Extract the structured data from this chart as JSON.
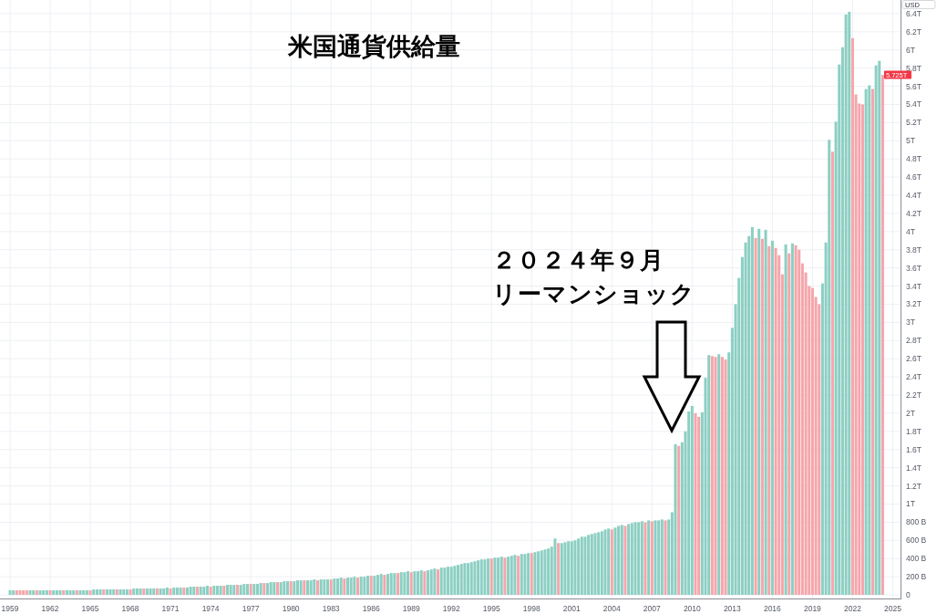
{
  "chart_data": {
    "type": "bar",
    "title": "米国通貨供給量",
    "ylabel": "USD",
    "annotations": [
      "２０２４年９月",
      "リーマンショック",
      {
        "text": "5.725T",
        "x": "2024-04",
        "y": 5725000000000.0
      }
    ],
    "x": [
      "1959-01",
      "1959-04",
      "1959-07",
      "1959-10",
      "1960-01",
      "1960-04",
      "1960-07",
      "1960-10",
      "1961-01",
      "1961-04",
      "1961-07",
      "1961-10",
      "1962-01",
      "1962-04",
      "1962-07",
      "1962-10",
      "1963-01",
      "1963-04",
      "1963-07",
      "1963-10",
      "1964-01",
      "1964-04",
      "1964-07",
      "1964-10",
      "1965-01",
      "1965-04",
      "1965-07",
      "1965-10",
      "1966-01",
      "1966-04",
      "1966-07",
      "1966-10",
      "1967-01",
      "1967-04",
      "1967-07",
      "1967-10",
      "1968-01",
      "1968-04",
      "1968-07",
      "1968-10",
      "1969-01",
      "1969-04",
      "1969-07",
      "1969-10",
      "1970-01",
      "1970-04",
      "1970-07",
      "1970-10",
      "1971-01",
      "1971-04",
      "1971-07",
      "1971-10",
      "1972-01",
      "1972-04",
      "1972-07",
      "1972-10",
      "1973-01",
      "1973-04",
      "1973-07",
      "1973-10",
      "1974-01",
      "1974-04",
      "1974-07",
      "1974-10",
      "1975-01",
      "1975-04",
      "1975-07",
      "1975-10",
      "1976-01",
      "1976-04",
      "1976-07",
      "1976-10",
      "1977-01",
      "1977-04",
      "1977-07",
      "1977-10",
      "1978-01",
      "1978-04",
      "1978-07",
      "1978-10",
      "1979-01",
      "1979-04",
      "1979-07",
      "1979-10",
      "1980-01",
      "1980-04",
      "1980-07",
      "1980-10",
      "1981-01",
      "1981-04",
      "1981-07",
      "1981-10",
      "1982-01",
      "1982-04",
      "1982-07",
      "1982-10",
      "1983-01",
      "1983-04",
      "1983-07",
      "1983-10",
      "1984-01",
      "1984-04",
      "1984-07",
      "1984-10",
      "1985-01",
      "1985-04",
      "1985-07",
      "1985-10",
      "1986-01",
      "1986-04",
      "1986-07",
      "1986-10",
      "1987-01",
      "1987-04",
      "1987-07",
      "1987-10",
      "1988-01",
      "1988-04",
      "1988-07",
      "1988-10",
      "1989-01",
      "1989-04",
      "1989-07",
      "1989-10",
      "1990-01",
      "1990-04",
      "1990-07",
      "1990-10",
      "1991-01",
      "1991-04",
      "1991-07",
      "1991-10",
      "1992-01",
      "1992-04",
      "1992-07",
      "1992-10",
      "1993-01",
      "1993-04",
      "1993-07",
      "1993-10",
      "1994-01",
      "1994-04",
      "1994-07",
      "1994-10",
      "1995-01",
      "1995-04",
      "1995-07",
      "1995-10",
      "1996-01",
      "1996-04",
      "1996-07",
      "1996-10",
      "1997-01",
      "1997-04",
      "1997-07",
      "1997-10",
      "1998-01",
      "1998-04",
      "1998-07",
      "1998-10",
      "1999-01",
      "1999-04",
      "1999-07",
      "1999-10",
      "2000-01",
      "2000-04",
      "2000-07",
      "2000-10",
      "2001-01",
      "2001-04",
      "2001-07",
      "2001-10",
      "2002-01",
      "2002-04",
      "2002-07",
      "2002-10",
      "2003-01",
      "2003-04",
      "2003-07",
      "2003-10",
      "2004-01",
      "2004-04",
      "2004-07",
      "2004-10",
      "2005-01",
      "2005-04",
      "2005-07",
      "2005-10",
      "2006-01",
      "2006-04",
      "2006-07",
      "2006-10",
      "2007-01",
      "2007-04",
      "2007-07",
      "2007-10",
      "2008-01",
      "2008-04",
      "2008-07",
      "2008-10",
      "2009-01",
      "2009-04",
      "2009-07",
      "2009-10",
      "2010-01",
      "2010-04",
      "2010-07",
      "2010-10",
      "2011-01",
      "2011-04",
      "2011-07",
      "2011-10",
      "2012-01",
      "2012-04",
      "2012-07",
      "2012-10",
      "2013-01",
      "2013-04",
      "2013-07",
      "2013-10",
      "2014-01",
      "2014-04",
      "2014-07",
      "2014-10",
      "2015-01",
      "2015-04",
      "2015-07",
      "2015-10",
      "2016-01",
      "2016-04",
      "2016-07",
      "2016-10",
      "2017-01",
      "2017-04",
      "2017-07",
      "2017-10",
      "2018-01",
      "2018-04",
      "2018-07",
      "2018-10",
      "2019-01",
      "2019-04",
      "2019-07",
      "2019-10",
      "2020-01",
      "2020-04",
      "2020-07",
      "2020-10",
      "2021-01",
      "2021-04",
      "2021-07",
      "2021-10",
      "2022-01",
      "2022-04",
      "2022-07",
      "2022-10",
      "2023-01",
      "2023-04",
      "2023-07",
      "2023-10",
      "2024-01",
      "2024-04"
    ],
    "values": [
      50000000000.0,
      50000000000.0,
      50000000000.0,
      50000000000.0,
      50000000000.0,
      50000000000.0,
      50000000000.0,
      50000000000.0,
      50000000000.0,
      50000000000.0,
      50000000000.0,
      50000000000.0,
      50000000000.0,
      50000000000.0,
      50000000000.0,
      50000000000.0,
      50000000000.0,
      50000000000.0,
      50000000000.0,
      50000000000.0,
      50000000000.0,
      50000000000.0,
      50000000000.0,
      50000000000.0,
      50000000000.0,
      60000000000.0,
      60000000000.0,
      60000000000.0,
      60000000000.0,
      60000000000.0,
      60000000000.0,
      60000000000.0,
      60000000000.0,
      60000000000.0,
      60000000000.0,
      60000000000.0,
      60000000000.0,
      70000000000.0,
      70000000000.0,
      70000000000.0,
      70000000000.0,
      70000000000.0,
      70000000000.0,
      70000000000.0,
      70000000000.0,
      70000000000.0,
      70000000000.0,
      80000000000.0,
      70000000000.0,
      80000000000.0,
      80000000000.0,
      80000000000.0,
      80000000000.0,
      80000000000.0,
      90000000000.0,
      90000000000.0,
      90000000000.0,
      90000000000.0,
      90000000000.0,
      100000000000.0,
      90000000000.0,
      100000000000.0,
      100000000000.0,
      100000000000.0,
      100000000000.0,
      110000000000.0,
      110000000000.0,
      110000000000.0,
      110000000000.0,
      110000000000.0,
      120000000000.0,
      120000000000.0,
      120000000000.0,
      120000000000.0,
      120000000000.0,
      130000000000.0,
      130000000000.0,
      130000000000.0,
      140000000000.0,
      140000000000.0,
      140000000000.0,
      140000000000.0,
      150000000000.0,
      150000000000.0,
      150000000000.0,
      150000000000.0,
      160000000000.0,
      160000000000.0,
      160000000000.0,
      160000000000.0,
      160000000000.0,
      170000000000.0,
      160000000000.0,
      170000000000.0,
      170000000000.0,
      170000000000.0,
      170000000000.0,
      180000000000.0,
      180000000000.0,
      190000000000.0,
      180000000000.0,
      190000000000.0,
      190000000000.0,
      200000000000.0,
      190000000000.0,
      200000000000.0,
      200000000000.0,
      210000000000.0,
      210000000000.0,
      210000000000.0,
      220000000000.0,
      230000000000.0,
      220000000000.0,
      230000000000.0,
      240000000000.0,
      240000000000.0,
      240000000000.0,
      250000000000.0,
      250000000000.0,
      260000000000.0,
      250000000000.0,
      260000000000.0,
      260000000000.0,
      270000000000.0,
      260000000000.0,
      270000000000.0,
      280000000000.0,
      290000000000.0,
      280000000000.0,
      300000000000.0,
      300000000000.0,
      310000000000.0,
      310000000000.0,
      320000000000.0,
      330000000000.0,
      340000000000.0,
      350000000000.0,
      350000000000.0,
      360000000000.0,
      370000000000.0,
      380000000000.0,
      390000000000.0,
      390000000000.0,
      400000000000.0,
      400000000000.0,
      410000000000.0,
      410000000000.0,
      420000000000.0,
      410000000000.0,
      420000000000.0,
      430000000000.0,
      440000000000.0,
      430000000000.0,
      450000000000.0,
      450000000000.0,
      460000000000.0,
      460000000000.0,
      470000000000.0,
      480000000000.0,
      490000000000.0,
      500000000000.0,
      510000000000.0,
      530000000000.0,
      620000000000.0,
      570000000000.0,
      570000000000.0,
      580000000000.0,
      590000000000.0,
      590000000000.0,
      600000000000.0,
      620000000000.0,
      640000000000.0,
      640000000000.0,
      660000000000.0,
      670000000000.0,
      680000000000.0,
      690000000000.0,
      700000000000.0,
      720000000000.0,
      730000000000.0,
      720000000000.0,
      740000000000.0,
      760000000000.0,
      770000000000.0,
      760000000000.0,
      780000000000.0,
      790000000000.0,
      800000000000.0,
      800000000000.0,
      810000000000.0,
      800000000000.0,
      820000000000.0,
      810000000000.0,
      820000000000.0,
      820000000000.0,
      830000000000.0,
      820000000000.0,
      830000000000.0,
      910000000000.0,
      1660000000000.0,
      1640000000000.0,
      1680000000000.0,
      1800000000000.0,
      2020000000000.0,
      2080000000000.0,
      2000000000000.0,
      1960000000000.0,
      2010000000000.0,
      2390000000000.0,
      2640000000000.0,
      2630000000000.0,
      2620000000000.0,
      2650000000000.0,
      2620000000000.0,
      2590000000000.0,
      2670000000000.0,
      2940000000000.0,
      3200000000000.0,
      3490000000000.0,
      3720000000000.0,
      3880000000000.0,
      3950000000000.0,
      4050000000000.0,
      3930000000000.0,
      4030000000000.0,
      3920000000000.0,
      4020000000000.0,
      3840000000000.0,
      3900000000000.0,
      3820000000000.0,
      3740000000000.0,
      3530000000000.0,
      3860000000000.0,
      3760000000000.0,
      3870000000000.0,
      3850000000000.0,
      3800000000000.0,
      3650000000000.0,
      3550000000000.0,
      3400000000000.0,
      3380000000000.0,
      3280000000000.0,
      3200000000000.0,
      3430000000000.0,
      3880000000000.0,
      5010000000000.0,
      4880000000000.0,
      5210000000000.0,
      5840000000000.0,
      6030000000000.0,
      6390000000000.0,
      6420000000000.0,
      6130000000000.0,
      5510000000000.0,
      5410000000000.0,
      5400000000000.0,
      5570000000000.0,
      5610000000000.0,
      5570000000000.0,
      5830000000000.0,
      5880000000000.0,
      5725000000000.0
    ],
    "colors": [
      "#8ccfc3",
      "#8ccfc3",
      "#f5a6ab",
      "#f5a6ab",
      "#f5a6ab",
      "#f5a6ab",
      "#8ccfc3",
      "#8ccfc3",
      "#f5a6ab",
      "#8ccfc3",
      "#8ccfc3",
      "#8ccfc3",
      "#f5a6ab",
      "#8ccfc3",
      "#8ccfc3",
      "#8ccfc3",
      "#f5a6ab",
      "#8ccfc3",
      "#8ccfc3",
      "#8ccfc3",
      "#f5a6ab",
      "#8ccfc3",
      "#8ccfc3",
      "#8ccfc3",
      "#f5a6ab",
      "#8ccfc3",
      "#8ccfc3",
      "#8ccfc3",
      "#f5a6ab",
      "#8ccfc3",
      "#8ccfc3",
      "#8ccfc3",
      "#f5a6ab",
      "#8ccfc3",
      "#8ccfc3",
      "#8ccfc3",
      "#f5a6ab",
      "#8ccfc3",
      "#8ccfc3",
      "#8ccfc3",
      "#f5a6ab",
      "#8ccfc3",
      "#8ccfc3",
      "#8ccfc3",
      "#f5a6ab",
      "#8ccfc3",
      "#8ccfc3",
      "#8ccfc3",
      "#f5a6ab",
      "#8ccfc3",
      "#8ccfc3",
      "#8ccfc3",
      "#f5a6ab",
      "#8ccfc3",
      "#8ccfc3",
      "#8ccfc3",
      "#f5a6ab",
      "#8ccfc3",
      "#8ccfc3",
      "#8ccfc3",
      "#f5a6ab",
      "#8ccfc3",
      "#8ccfc3",
      "#8ccfc3",
      "#f5a6ab",
      "#8ccfc3",
      "#8ccfc3",
      "#8ccfc3",
      "#f5a6ab",
      "#8ccfc3",
      "#8ccfc3",
      "#8ccfc3",
      "#f5a6ab",
      "#8ccfc3",
      "#8ccfc3",
      "#8ccfc3",
      "#f5a6ab",
      "#8ccfc3",
      "#8ccfc3",
      "#8ccfc3",
      "#f5a6ab",
      "#8ccfc3",
      "#8ccfc3",
      "#8ccfc3",
      "#f5a6ab",
      "#8ccfc3",
      "#8ccfc3",
      "#8ccfc3",
      "#f5a6ab",
      "#8ccfc3",
      "#8ccfc3",
      "#8ccfc3",
      "#f5a6ab",
      "#8ccfc3",
      "#8ccfc3",
      "#8ccfc3",
      "#f5a6ab",
      "#8ccfc3",
      "#8ccfc3",
      "#8ccfc3",
      "#f5a6ab",
      "#8ccfc3",
      "#8ccfc3",
      "#8ccfc3",
      "#f5a6ab",
      "#8ccfc3",
      "#8ccfc3",
      "#8ccfc3",
      "#f5a6ab",
      "#8ccfc3",
      "#8ccfc3",
      "#8ccfc3",
      "#f5a6ab",
      "#8ccfc3",
      "#8ccfc3",
      "#8ccfc3",
      "#f5a6ab",
      "#8ccfc3",
      "#8ccfc3",
      "#8ccfc3",
      "#f5a6ab",
      "#8ccfc3",
      "#8ccfc3",
      "#8ccfc3",
      "#f5a6ab",
      "#8ccfc3",
      "#8ccfc3",
      "#8ccfc3",
      "#f5a6ab",
      "#8ccfc3",
      "#8ccfc3",
      "#8ccfc3",
      "#8ccfc3",
      "#8ccfc3",
      "#8ccfc3",
      "#8ccfc3",
      "#8ccfc3",
      "#8ccfc3",
      "#8ccfc3",
      "#8ccfc3",
      "#8ccfc3",
      "#8ccfc3",
      "#8ccfc3",
      "#8ccfc3",
      "#f5a6ab",
      "#8ccfc3",
      "#8ccfc3",
      "#8ccfc3",
      "#f5a6ab",
      "#8ccfc3",
      "#8ccfc3",
      "#8ccfc3",
      "#f5a6ab",
      "#8ccfc3",
      "#8ccfc3",
      "#8ccfc3",
      "#f5a6ab",
      "#8ccfc3",
      "#8ccfc3",
      "#8ccfc3",
      "#8ccfc3",
      "#8ccfc3",
      "#8ccfc3",
      "#8ccfc3",
      "#f5a6ab",
      "#8ccfc3",
      "#8ccfc3",
      "#8ccfc3",
      "#8ccfc3",
      "#8ccfc3",
      "#8ccfc3",
      "#8ccfc3",
      "#8ccfc3",
      "#8ccfc3",
      "#8ccfc3",
      "#8ccfc3",
      "#8ccfc3",
      "#8ccfc3",
      "#8ccfc3",
      "#8ccfc3",
      "#f5a6ab",
      "#8ccfc3",
      "#8ccfc3",
      "#8ccfc3",
      "#f5a6ab",
      "#8ccfc3",
      "#8ccfc3",
      "#8ccfc3",
      "#8ccfc3",
      "#8ccfc3",
      "#f5a6ab",
      "#8ccfc3",
      "#f5a6ab",
      "#8ccfc3",
      "#8ccfc3",
      "#8ccfc3",
      "#f5a6ab",
      "#8ccfc3",
      "#8ccfc3",
      "#8ccfc3",
      "#f5a6ab",
      "#8ccfc3",
      "#8ccfc3",
      "#8ccfc3",
      "#8ccfc3",
      "#f5a6ab",
      "#f5a6ab",
      "#8ccfc3",
      "#8ccfc3",
      "#8ccfc3",
      "#f5a6ab",
      "#f5a6ab",
      "#8ccfc3",
      "#f5a6ab",
      "#f5a6ab",
      "#8ccfc3",
      "#8ccfc3",
      "#8ccfc3",
      "#8ccfc3",
      "#8ccfc3",
      "#8ccfc3",
      "#8ccfc3",
      "#8ccfc3",
      "#f5a6ab",
      "#8ccfc3",
      "#f5a6ab",
      "#8ccfc3",
      "#f5a6ab",
      "#8ccfc3",
      "#f5a6ab",
      "#f5a6ab",
      "#f5a6ab",
      "#8ccfc3",
      "#f5a6ab",
      "#8ccfc3",
      "#f5a6ab",
      "#f5a6ab",
      "#f5a6ab",
      "#f5a6ab",
      "#f5a6ab",
      "#f5a6ab",
      "#f5a6ab",
      "#f5a6ab",
      "#8ccfc3",
      "#8ccfc3",
      "#8ccfc3",
      "#f5a6ab",
      "#8ccfc3",
      "#8ccfc3",
      "#8ccfc3",
      "#8ccfc3",
      "#8ccfc3",
      "#f5a6ab",
      "#f5a6ab",
      "#f5a6ab",
      "#f5a6ab",
      "#8ccfc3",
      "#8ccfc3",
      "#f5a6ab",
      "#8ccfc3",
      "#8ccfc3",
      "#f5a6ab"
    ],
    "xlim": [
      "1958-04",
      "2025-08"
    ],
    "xticks": [
      "1959",
      "1962",
      "1965",
      "1968",
      "1971",
      "1974",
      "1977",
      "1980",
      "1983",
      "1986",
      "1989",
      "1992",
      "1995",
      "1998",
      "2001",
      "2004",
      "2007",
      "2010",
      "2013",
      "2016",
      "2019",
      "2022",
      "2025"
    ],
    "ylim": [
      -40000000000.0,
      6550000000000.0
    ],
    "yticks": [
      0,
      {
        "value": 200000000000.0,
        "label": "200 B"
      },
      {
        "value": 400000000000.0,
        "label": "400 B"
      },
      {
        "value": 600000000000.0,
        "label": "600 B"
      },
      {
        "value": 800000000000.0,
        "label": "800 B"
      },
      {
        "value": 1000000000000.0,
        "label": "1T"
      },
      {
        "value": 1200000000000.0,
        "label": "1.2T"
      },
      {
        "value": 1400000000000.0,
        "label": "1.4T"
      },
      {
        "value": 1600000000000.0,
        "label": "1.6T"
      },
      {
        "value": 1800000000000.0,
        "label": "1.8T"
      },
      {
        "value": 2000000000000.0,
        "label": "2T"
      },
      {
        "value": 2200000000000.0,
        "label": "2.2T"
      },
      {
        "value": 2400000000000.0,
        "label": "2.4T"
      },
      {
        "value": 2600000000000.0,
        "label": "2.6T"
      },
      {
        "value": 2800000000000.0,
        "label": "2.8T"
      },
      {
        "value": 3000000000000.0,
        "label": "3T"
      },
      {
        "value": 3200000000000.0,
        "label": "3.2T"
      },
      {
        "value": 3400000000000.0,
        "label": "3.4T"
      },
      {
        "value": 3600000000000.0,
        "label": "3.6T"
      },
      {
        "value": 3800000000000.0,
        "label": "3.8T"
      },
      {
        "value": 4000000000000.0,
        "label": "4T"
      },
      {
        "value": 4200000000000.0,
        "label": "4.2T"
      },
      {
        "value": 4400000000000.0,
        "label": "4.4T"
      },
      {
        "value": 4600000000000.0,
        "label": "4.6T"
      },
      {
        "value": 4800000000000.0,
        "label": "4.8T"
      },
      {
        "value": 5000000000000.0,
        "label": "5T"
      },
      {
        "value": 5200000000000.0,
        "label": "5.2T"
      },
      {
        "value": 5400000000000.0,
        "label": "5.4T"
      },
      {
        "value": 5600000000000.0,
        "label": "5.6T"
      },
      {
        "value": 5800000000000.0,
        "label": "5.8T"
      },
      {
        "value": 6000000000000.0,
        "label": "6T"
      },
      {
        "value": 6200000000000.0,
        "label": "6.2T"
      },
      {
        "value": 6400000000000.0,
        "label": "6.4T"
      }
    ],
    "grid": true
  }
}
